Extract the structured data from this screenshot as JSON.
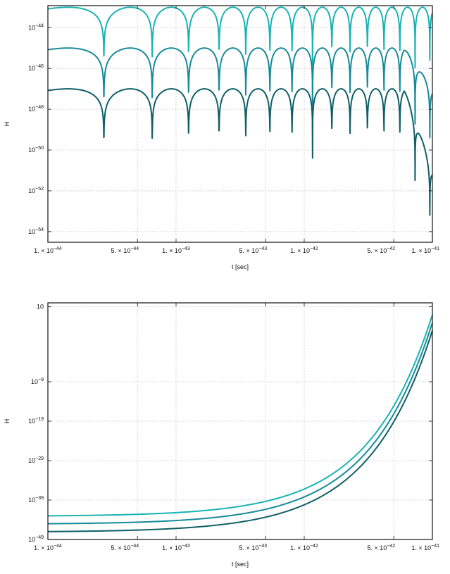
{
  "chart_data": [
    {
      "type": "line",
      "xlabel": "t [sec]",
      "ylabel": "H",
      "x_scale": "log",
      "y_scale": "log",
      "xlim": [
        "1e-44",
        "1e-41"
      ],
      "ylim": [
        "3e-55",
        "1.2e-43"
      ],
      "grid": true,
      "x_ticks": [
        {
          "value": "1e-44",
          "mantissa": "1.",
          "exp": "−44"
        },
        {
          "value": "5e-44",
          "mantissa": "5.",
          "exp": "−44"
        },
        {
          "value": "1e-43",
          "mantissa": "1.",
          "exp": "−43"
        },
        {
          "value": "5e-43",
          "mantissa": "5.",
          "exp": "−43"
        },
        {
          "value": "1e-42",
          "mantissa": "1.",
          "exp": "−42"
        },
        {
          "value": "5e-42",
          "mantissa": "5.",
          "exp": "−42"
        },
        {
          "value": "1e-41",
          "mantissa": "1.",
          "exp": "−41"
        }
      ],
      "y_ticks": [
        {
          "value": "1e-44",
          "exp": "−44"
        },
        {
          "value": "1e-46",
          "exp": "−46"
        },
        {
          "value": "1e-48",
          "exp": "−48"
        },
        {
          "value": "1e-50",
          "exp": "−50"
        },
        {
          "value": "1e-52",
          "exp": "−52"
        },
        {
          "value": "1e-54",
          "exp": "−54"
        }
      ],
      "series": [
        {
          "color": "#1ab3b3",
          "plateau": "1e-43",
          "shape": "oscillating"
        },
        {
          "color": "#178a99",
          "plateau": "1e-45",
          "shape": "oscillating"
        },
        {
          "color": "#0f5f66",
          "plateau": "1e-47",
          "shape": "oscillating"
        }
      ],
      "approx_minima_t": [
        "3.5e-43",
        "9.5e-43",
        "1.6e-42",
        "2.2e-42"
      ]
    },
    {
      "type": "line",
      "xlabel": "t [sec]",
      "ylabel": "H",
      "x_scale": "log",
      "y_scale": "log",
      "xlim": [
        "1e-44",
        "1e-41"
      ],
      "ylim": [
        "1e-49",
        "1e11"
      ],
      "grid": true,
      "x_ticks": [
        {
          "value": "1e-44",
          "mantissa": "1.",
          "exp": "−44"
        },
        {
          "value": "5e-44",
          "mantissa": "5.",
          "exp": "−44"
        },
        {
          "value": "1e-43",
          "mantissa": "1.",
          "exp": "−43"
        },
        {
          "value": "5e-43",
          "mantissa": "5.",
          "exp": "−43"
        },
        {
          "value": "1e-42",
          "mantissa": "1.",
          "exp": "−42"
        },
        {
          "value": "5e-42",
          "mantissa": "5.",
          "exp": "−42"
        },
        {
          "value": "1e-41",
          "mantissa": "1.",
          "exp": "−41"
        }
      ],
      "y_ticks": [
        {
          "value": "1e10",
          "text": "10",
          "exp": ""
        },
        {
          "value": "1e-9",
          "exp": "−9"
        },
        {
          "value": "1e-19",
          "exp": "−19"
        },
        {
          "value": "1e-29",
          "exp": "−29"
        },
        {
          "value": "1e-39",
          "exp": "−39"
        },
        {
          "value": "1e-49",
          "exp": "−49"
        }
      ],
      "series": [
        {
          "color": "#1ab3b3",
          "start": "1e-43",
          "end": "1e8"
        },
        {
          "color": "#178a99",
          "start": "1e-45",
          "end": "1e6"
        },
        {
          "color": "#0f5f66",
          "start": "1e-47",
          "end": "1e4"
        }
      ]
    }
  ]
}
